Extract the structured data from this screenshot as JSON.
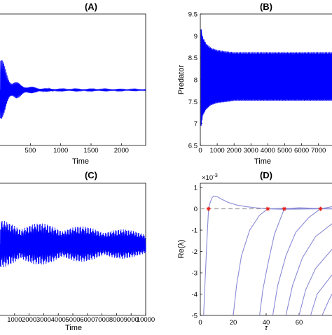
{
  "colors": {
    "signal": "#0000ff",
    "curve": "#8a8ad6",
    "marker": "#e8241c",
    "zero_line": "#9a9a9a"
  },
  "chart_data": [
    {
      "panel": "A",
      "type": "line",
      "title": "(A)",
      "xlabel": "Time",
      "ylabel": "",
      "x_ticks": [
        500,
        1000,
        1500,
        2000
      ],
      "xlim": [
        0,
        2400
      ],
      "series": [
        {
          "envelope_x": [
            0,
            50,
            100,
            150,
            200,
            300,
            400,
            500,
            650,
            800,
            1000,
            1500,
            2400
          ],
          "envelope_half_amplitude_pct_of_height": [
            0.3,
            0.22,
            0.16,
            0.12,
            0.09,
            0.06,
            0.04,
            0.028,
            0.018,
            0.012,
            0.008,
            0.008,
            0.006
          ],
          "note_visible": "decaying oscillation converging to a steady level"
        }
      ]
    },
    {
      "panel": "B",
      "type": "line",
      "title": "(B)",
      "xlabel": "Time",
      "ylabel": "Predator",
      "x_ticks": [
        0,
        1000,
        2000,
        3000,
        4000,
        5000,
        6000,
        7000
      ],
      "y_ticks": [
        6.5,
        7,
        7.5,
        8,
        8.5,
        9,
        9.5
      ],
      "xlim": [
        0,
        7800
      ],
      "ylim": [
        6.5,
        9.5
      ],
      "series": [
        {
          "envelope_x": [
            0,
            100,
            300,
            600,
            1000,
            1500,
            2000,
            7800
          ],
          "upper": [
            9.15,
            8.95,
            8.8,
            8.7,
            8.65,
            8.62,
            8.6,
            8.6
          ],
          "lower": [
            6.95,
            7.2,
            7.35,
            7.45,
            7.5,
            7.52,
            7.55,
            7.55
          ]
        }
      ]
    },
    {
      "panel": "C",
      "type": "line",
      "title": "(C)",
      "xlabel": "Time",
      "ylabel": "",
      "x_ticks": [
        1000,
        2000,
        3000,
        4000,
        5000,
        6000,
        7000,
        8000,
        9000,
        10000
      ],
      "xlim": [
        0,
        10000
      ],
      "series": [
        {
          "note_visible": "sustained beating oscillation with modulated amplitude"
        }
      ]
    },
    {
      "panel": "D",
      "type": "line",
      "title": "(D)",
      "xlabel": "τ",
      "ylabel": "Re(λ)",
      "y_scale_label": "×10",
      "y_scale_exponent": "-3",
      "x_ticks": [
        0,
        20,
        40,
        60
      ],
      "y_ticks": [
        1,
        0,
        -1,
        -2,
        -3,
        -4,
        -5
      ],
      "xlim": [
        0,
        80
      ],
      "ylim": [
        -5,
        1.2
      ],
      "markers_at_zero": [
        5,
        41,
        51,
        73
      ],
      "series": [
        {
          "x": [
            2,
            3,
            4,
            5,
            6,
            7,
            8,
            10,
            13,
            17,
            22,
            28,
            35,
            41,
            50,
            60,
            70,
            80
          ],
          "y": [
            -5,
            -3.2,
            -1.5,
            0,
            0.3,
            0.5,
            0.6,
            0.58,
            0.45,
            0.3,
            0.18,
            0.1,
            0.04,
            0,
            -0.02,
            -0.01,
            0,
            0
          ]
        },
        {
          "x": [
            20,
            22,
            25,
            30,
            36,
            41,
            50,
            60,
            70,
            80
          ],
          "y": [
            -5,
            -3.6,
            -2.2,
            -1.0,
            -0.3,
            0,
            0.02,
            0.01,
            0,
            0
          ]
        },
        {
          "x": [
            36,
            38,
            41,
            45,
            51,
            60,
            70,
            80
          ],
          "y": [
            -5,
            -3.8,
            -2.6,
            -1.2,
            0,
            0.05,
            0.02,
            0
          ]
        },
        {
          "x": [
            44,
            47,
            52,
            58,
            66,
            73,
            80
          ],
          "y": [
            -5,
            -3.6,
            -2.2,
            -1.1,
            -0.4,
            0,
            0.1
          ]
        },
        {
          "x": [
            52,
            56,
            62,
            70,
            80
          ],
          "y": [
            -5,
            -3.6,
            -2.3,
            -1.3,
            -0.7
          ]
        },
        {
          "x": [
            60,
            64,
            70,
            80
          ],
          "y": [
            -5,
            -3.8,
            -2.8,
            -1.9
          ]
        },
        {
          "x": [
            67,
            71,
            80
          ],
          "y": [
            -5,
            -4.0,
            -3.1
          ]
        },
        {
          "x": [
            74,
            78,
            80
          ],
          "y": [
            -5,
            -4.3,
            -4.0
          ]
        }
      ]
    }
  ]
}
